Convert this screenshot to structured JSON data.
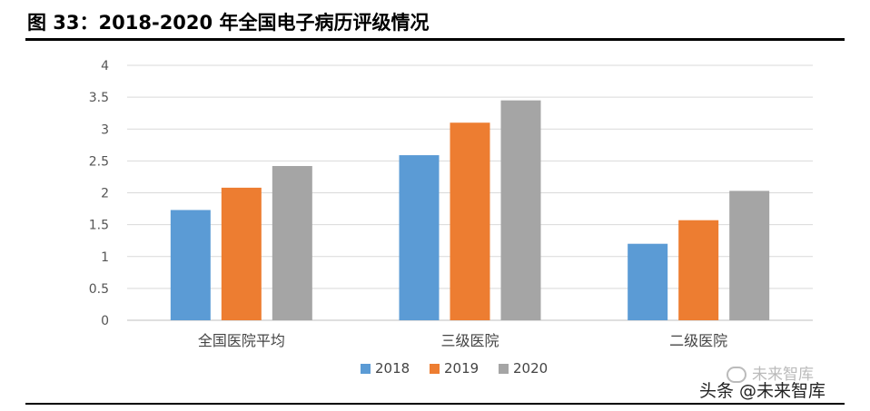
{
  "figure": {
    "title": "图 33：2018-2020 年全国电子病历评级情况"
  },
  "chart_data": {
    "type": "bar",
    "title": "",
    "xlabel": "",
    "ylabel": "",
    "ylim": [
      0,
      4
    ],
    "yticks": [
      "0",
      "0.5",
      "1",
      "1.5",
      "2",
      "2.5",
      "3",
      "3.5",
      "4"
    ],
    "grid": true,
    "legend_position": "bottom",
    "categories": [
      "全国医院平均",
      "三级医院",
      "二级医院"
    ],
    "series": [
      {
        "name": "2018",
        "color": "#5b9bd5",
        "values": [
          1.73,
          2.59,
          1.2
        ]
      },
      {
        "name": "2019",
        "color": "#ed7d31",
        "values": [
          2.08,
          3.1,
          1.57
        ]
      },
      {
        "name": "2020",
        "color": "#a5a5a5",
        "values": [
          2.42,
          3.45,
          2.03
        ]
      }
    ]
  },
  "watermark": {
    "main": "头条 @未来智库",
    "faded": "未来智库"
  }
}
